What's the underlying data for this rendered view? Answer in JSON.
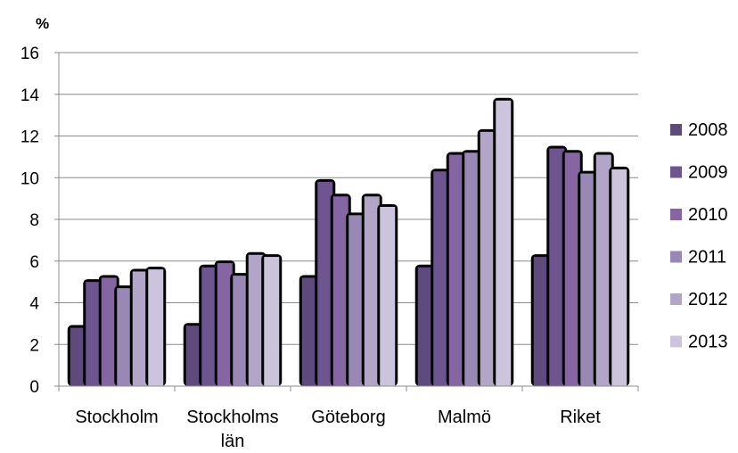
{
  "chart_data": {
    "type": "bar",
    "ylabel": "%",
    "ylim": [
      0,
      16
    ],
    "yticks": [
      0,
      2,
      4,
      6,
      8,
      10,
      12,
      14,
      16
    ],
    "grid": true,
    "legend": "right",
    "categories": [
      [
        "Stockholm"
      ],
      [
        "Stockholms",
        "län"
      ],
      [
        "Göteborg"
      ],
      [
        "Malmö"
      ],
      [
        "Riket"
      ]
    ],
    "series": [
      {
        "name": "2008",
        "color": "#5e4a7c",
        "values": [
          2.8,
          2.9,
          5.2,
          5.7,
          6.2
        ]
      },
      {
        "name": "2009",
        "color": "#6e5590",
        "values": [
          5.0,
          5.7,
          9.8,
          10.3,
          11.4
        ]
      },
      {
        "name": "2010",
        "color": "#8566a3",
        "values": [
          5.2,
          5.9,
          9.1,
          11.1,
          11.2
        ]
      },
      {
        "name": "2011",
        "color": "#9987b5",
        "values": [
          4.7,
          5.3,
          8.2,
          11.2,
          10.2
        ]
      },
      {
        "name": "2012",
        "color": "#b2a5c8",
        "values": [
          5.5,
          6.3,
          9.1,
          12.2,
          11.1
        ]
      },
      {
        "name": "2013",
        "color": "#cbc4dc",
        "values": [
          5.6,
          6.2,
          8.6,
          13.7,
          10.4
        ]
      }
    ]
  }
}
